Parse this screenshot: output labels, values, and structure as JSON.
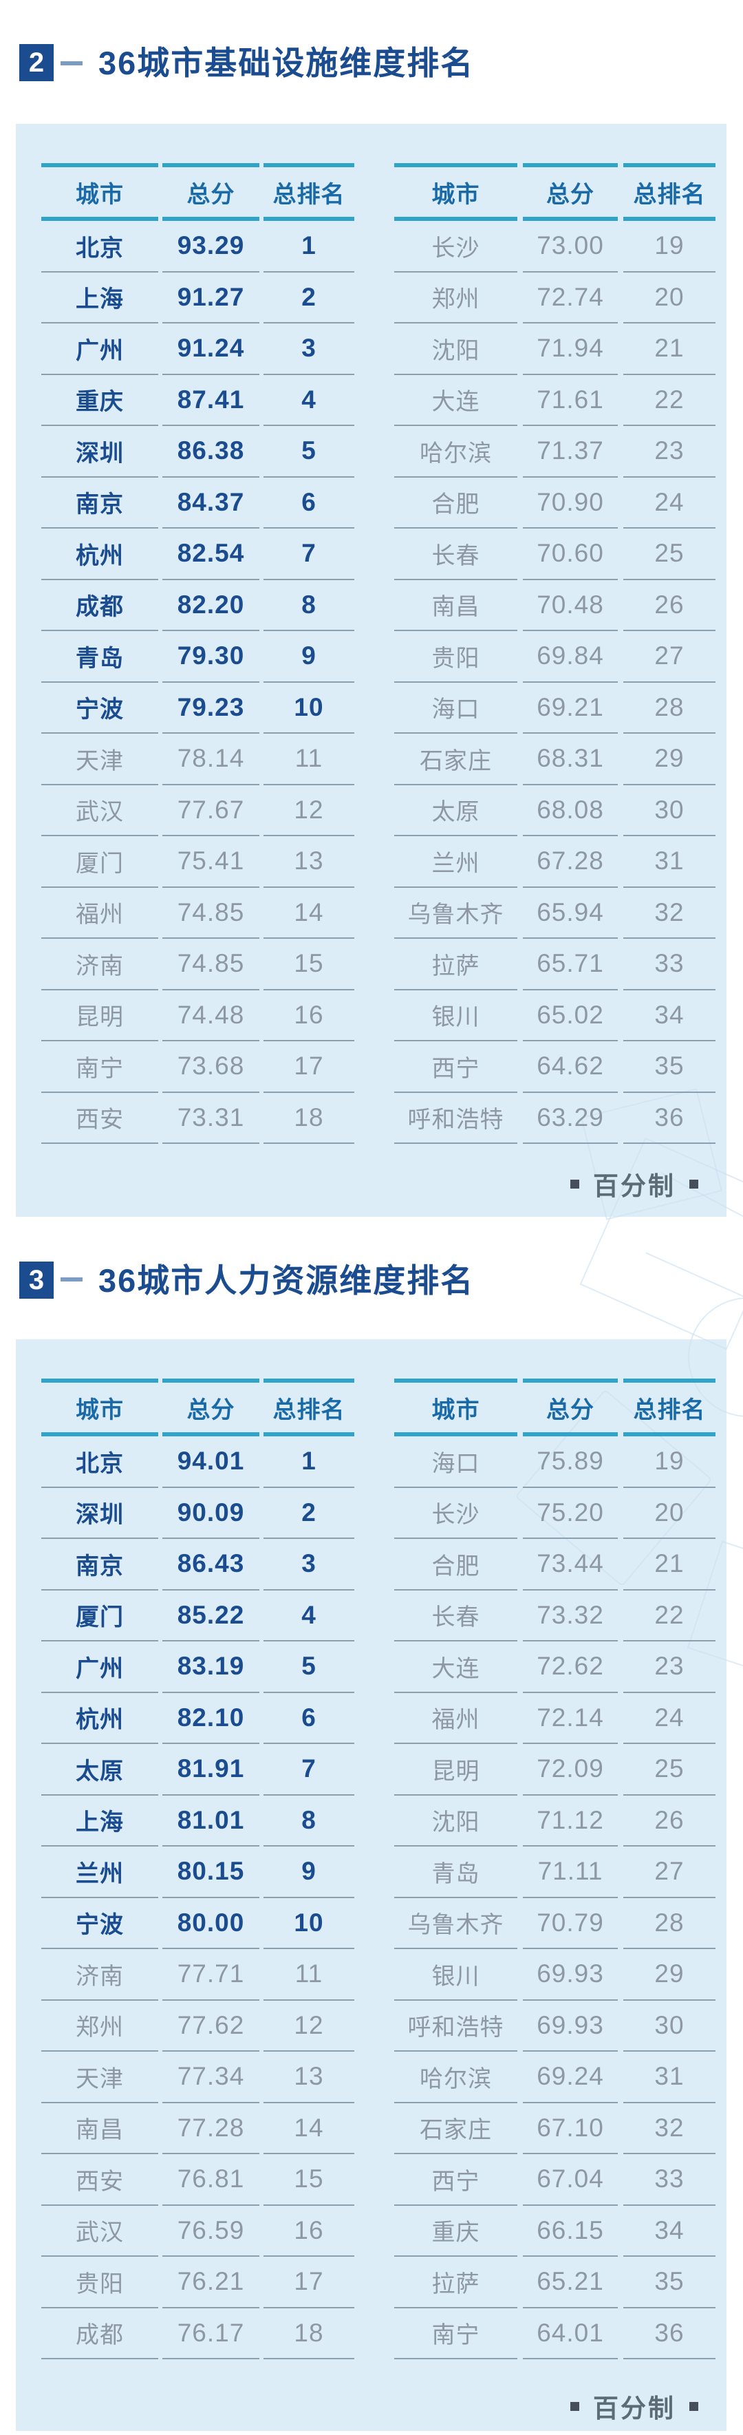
{
  "colors": {
    "navy": "#1b4c8f",
    "teal_bar": "#2fa3c9",
    "header_text": "#1a6aa8",
    "gray_row_text": "#8d98a3",
    "panel_bg": "#ddedf7",
    "note_text": "#5d6b77"
  },
  "chart_data": [
    {
      "type": "table",
      "badge": "2",
      "title": "36城市基础设施维度排名",
      "columns": [
        "城市",
        "总分",
        "总排名"
      ],
      "note": "百分制",
      "left_rows": [
        [
          "北京",
          "93.29",
          1
        ],
        [
          "上海",
          "91.27",
          2
        ],
        [
          "广州",
          "91.24",
          3
        ],
        [
          "重庆",
          "87.41",
          4
        ],
        [
          "深圳",
          "86.38",
          5
        ],
        [
          "南京",
          "84.37",
          6
        ],
        [
          "杭州",
          "82.54",
          7
        ],
        [
          "成都",
          "82.20",
          8
        ],
        [
          "青岛",
          "79.30",
          9
        ],
        [
          "宁波",
          "79.23",
          10
        ],
        [
          "天津",
          "78.14",
          11
        ],
        [
          "武汉",
          "77.67",
          12
        ],
        [
          "厦门",
          "75.41",
          13
        ],
        [
          "福州",
          "74.85",
          14
        ],
        [
          "济南",
          "74.85",
          15
        ],
        [
          "昆明",
          "74.48",
          16
        ],
        [
          "南宁",
          "73.68",
          17
        ],
        [
          "西安",
          "73.31",
          18
        ]
      ],
      "right_rows": [
        [
          "长沙",
          "73.00",
          19
        ],
        [
          "郑州",
          "72.74",
          20
        ],
        [
          "沈阳",
          "71.94",
          21
        ],
        [
          "大连",
          "71.61",
          22
        ],
        [
          "哈尔滨",
          "71.37",
          23
        ],
        [
          "合肥",
          "70.90",
          24
        ],
        [
          "长春",
          "70.60",
          25
        ],
        [
          "南昌",
          "70.48",
          26
        ],
        [
          "贵阳",
          "69.84",
          27
        ],
        [
          "海口",
          "69.21",
          28
        ],
        [
          "石家庄",
          "68.31",
          29
        ],
        [
          "太原",
          "68.08",
          30
        ],
        [
          "兰州",
          "67.28",
          31
        ],
        [
          "乌鲁木齐",
          "65.94",
          32
        ],
        [
          "拉萨",
          "65.71",
          33
        ],
        [
          "银川",
          "65.02",
          34
        ],
        [
          "西宁",
          "64.62",
          35
        ],
        [
          "呼和浩特",
          "63.29",
          36
        ]
      ]
    },
    {
      "type": "table",
      "badge": "3",
      "title": "36城市人力资源维度排名",
      "columns": [
        "城市",
        "总分",
        "总排名"
      ],
      "note": "百分制",
      "left_rows": [
        [
          "北京",
          "94.01",
          1
        ],
        [
          "深圳",
          "90.09",
          2
        ],
        [
          "南京",
          "86.43",
          3
        ],
        [
          "厦门",
          "85.22",
          4
        ],
        [
          "广州",
          "83.19",
          5
        ],
        [
          "杭州",
          "82.10",
          6
        ],
        [
          "太原",
          "81.91",
          7
        ],
        [
          "上海",
          "81.01",
          8
        ],
        [
          "兰州",
          "80.15",
          9
        ],
        [
          "宁波",
          "80.00",
          10
        ],
        [
          "济南",
          "77.71",
          11
        ],
        [
          "郑州",
          "77.62",
          12
        ],
        [
          "天津",
          "77.34",
          13
        ],
        [
          "南昌",
          "77.28",
          14
        ],
        [
          "西安",
          "76.81",
          15
        ],
        [
          "武汉",
          "76.59",
          16
        ],
        [
          "贵阳",
          "76.21",
          17
        ],
        [
          "成都",
          "76.17",
          18
        ]
      ],
      "right_rows": [
        [
          "海口",
          "75.89",
          19
        ],
        [
          "长沙",
          "75.20",
          20
        ],
        [
          "合肥",
          "73.44",
          21
        ],
        [
          "长春",
          "73.32",
          22
        ],
        [
          "大连",
          "72.62",
          23
        ],
        [
          "福州",
          "72.14",
          24
        ],
        [
          "昆明",
          "72.09",
          25
        ],
        [
          "沈阳",
          "71.12",
          26
        ],
        [
          "青岛",
          "71.11",
          27
        ],
        [
          "乌鲁木齐",
          "70.79",
          28
        ],
        [
          "银川",
          "69.93",
          29
        ],
        [
          "呼和浩特",
          "69.93",
          30
        ],
        [
          "哈尔滨",
          "69.24",
          31
        ],
        [
          "石家庄",
          "67.10",
          32
        ],
        [
          "西宁",
          "67.04",
          33
        ],
        [
          "重庆",
          "66.15",
          34
        ],
        [
          "拉萨",
          "65.21",
          35
        ],
        [
          "南宁",
          "64.01",
          36
        ]
      ]
    }
  ]
}
